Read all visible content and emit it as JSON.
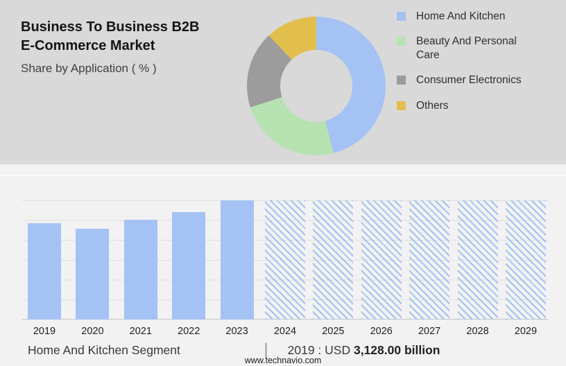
{
  "header": {
    "title": "Business To Business B2B E-Commerce Market",
    "subtitle": "Share by Application ( % )"
  },
  "palette": {
    "top_bg": "#d9d9d9",
    "bottom_bg": "#f2f2f2",
    "blue": "#a4c2f4",
    "green": "#b6e2b2",
    "gray": "#9c9c9c",
    "yellow": "#e2bf4d"
  },
  "chart_data": [
    {
      "type": "pie",
      "title": "Share by Application ( % )",
      "labels": [
        "Home And Kitchen",
        "Beauty And Personal Care",
        "Consumer Electronics",
        "Others"
      ],
      "values": [
        46,
        24,
        18,
        12
      ],
      "colors": [
        "#a4c2f4",
        "#b6e2b2",
        "#9c9c9c",
        "#e2bf4d"
      ],
      "donut": true,
      "legend_position": "right",
      "note": "slice percentages estimated from arc angles; no numeric labels shown"
    },
    {
      "type": "bar",
      "title": "Home And Kitchen Segment",
      "categories": [
        "2019",
        "2020",
        "2021",
        "2022",
        "2023",
        "2024",
        "2025",
        "2026",
        "2027",
        "2028",
        "2029"
      ],
      "values_relative_pct": [
        81,
        76,
        84,
        90,
        100,
        100,
        100,
        100,
        100,
        100,
        100
      ],
      "forecast_from": "2024",
      "bar_color": "#a4c2f4",
      "forecast_style": "hatched",
      "grid": true,
      "ylabel": "",
      "xlabel": "",
      "known_point": {
        "year": "2019",
        "value": "USD 3,128.00 billion"
      }
    }
  ],
  "caption": {
    "segment_label": "Home And Kitchen Segment",
    "separator": "|",
    "value_prefix": "2019 : USD",
    "value_bold": "3,128.00 billion"
  },
  "footer": {
    "website": "www.technavio.com"
  }
}
